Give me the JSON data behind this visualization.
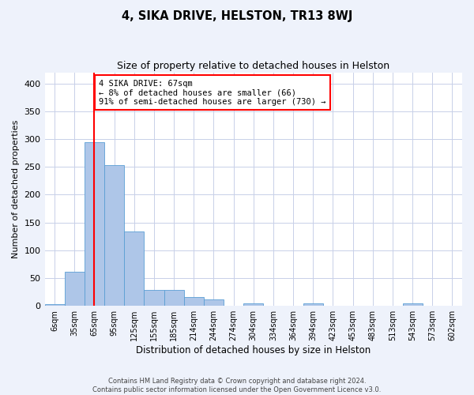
{
  "title": "4, SIKA DRIVE, HELSTON, TR13 8WJ",
  "subtitle": "Size of property relative to detached houses in Helston",
  "xlabel": "Distribution of detached houses by size in Helston",
  "ylabel": "Number of detached properties",
  "bar_labels": [
    "6sqm",
    "35sqm",
    "65sqm",
    "95sqm",
    "125sqm",
    "155sqm",
    "185sqm",
    "214sqm",
    "244sqm",
    "274sqm",
    "304sqm",
    "334sqm",
    "364sqm",
    "394sqm",
    "423sqm",
    "453sqm",
    "483sqm",
    "513sqm",
    "543sqm",
    "573sqm",
    "602sqm"
  ],
  "bar_heights": [
    3,
    62,
    295,
    253,
    134,
    29,
    29,
    16,
    11,
    0,
    5,
    0,
    0,
    5,
    0,
    0,
    0,
    0,
    4,
    0,
    0
  ],
  "bar_color": "#aec6e8",
  "bar_edge_color": "#5a9fd4",
  "bar_width": 1.0,
  "vline_x": 2,
  "vline_color": "red",
  "annotation_text": "4 SIKA DRIVE: 67sqm\n← 8% of detached houses are smaller (66)\n91% of semi-detached houses are larger (730) →",
  "annotation_box_color": "white",
  "annotation_box_edge": "red",
  "ylim": [
    0,
    420
  ],
  "yticks": [
    0,
    50,
    100,
    150,
    200,
    250,
    300,
    350,
    400
  ],
  "footnote": "Contains HM Land Registry data © Crown copyright and database right 2024.\nContains public sector information licensed under the Open Government Licence v3.0.",
  "bg_color": "#eef2fb",
  "plot_bg_color": "#ffffff",
  "grid_color": "#c8d0e8"
}
